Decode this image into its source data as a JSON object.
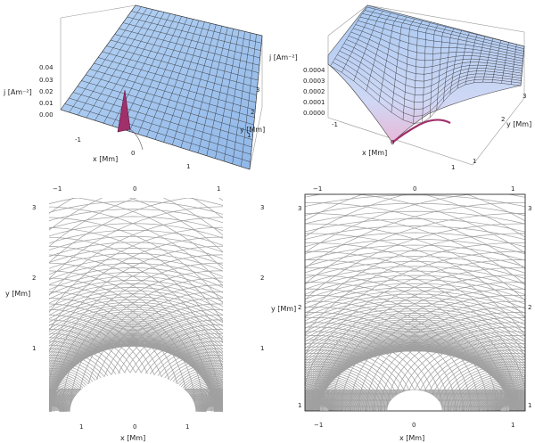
{
  "chart_data": [
    {
      "type": "surface",
      "zlabel": "j [Am⁻²]",
      "xlabel": "x [Mm]",
      "ylabel": "y [Mm]",
      "zticks": [
        "0.00",
        "0.01",
        "0.02",
        "0.03",
        "0.04"
      ],
      "xticks": [
        "-1",
        "0",
        "1"
      ],
      "yticks": [
        "1",
        "2",
        "3"
      ],
      "xlim": [
        -1.5,
        1.5
      ],
      "ylim": [
        0,
        3
      ],
      "zlim": [
        0,
        0.04
      ],
      "peak": {
        "x": 0,
        "y": 0.2,
        "z": 0.035
      }
    },
    {
      "type": "surface",
      "zlabel": "j [Am⁻²]",
      "xlabel": "x [Mm]",
      "ylabel": "y [Mm]",
      "zticks": [
        "0.0000",
        "0.0001",
        "0.0002",
        "0.0003",
        "0.0004"
      ],
      "xticks": [
        "-1",
        "0",
        "1"
      ],
      "yticks": [
        "1",
        "2",
        "3"
      ],
      "xlim": [
        -1.5,
        1.5
      ],
      "ylim": [
        0,
        3
      ],
      "zlim": [
        0,
        0.0004
      ]
    },
    {
      "type": "contour",
      "xlabel": "x [Mm]",
      "ylabel": "y [Mm]",
      "xticks_bottom": [
        "1",
        "0",
        "1"
      ],
      "xticks_top": [
        "−1",
        "0",
        "1"
      ],
      "yticks": [
        "1",
        "2",
        "3"
      ],
      "xlim": [
        -1.5,
        1.5
      ],
      "ylim": [
        0,
        3
      ],
      "frame": false,
      "line_color": "#a0a0a0",
      "central_hole": {
        "rx": 0.75,
        "ry": 0.55
      }
    },
    {
      "type": "contour",
      "xlabel": "x [Mm]",
      "ylabel": "y [Mm]",
      "xticks_bottom": [
        "−1",
        "0",
        "1"
      ],
      "xticks_top": [
        "−1",
        "0",
        "1"
      ],
      "yticks_left": [
        "1",
        "2",
        "3"
      ],
      "yticks_right": [
        "1",
        "2",
        "3"
      ],
      "xlim": [
        -1.5,
        1.5
      ],
      "ylim": [
        0,
        3
      ],
      "frame": true,
      "line_color": "#a0a0a0",
      "central_hole": {
        "rx": 0.28,
        "ry": 0.32
      }
    }
  ]
}
